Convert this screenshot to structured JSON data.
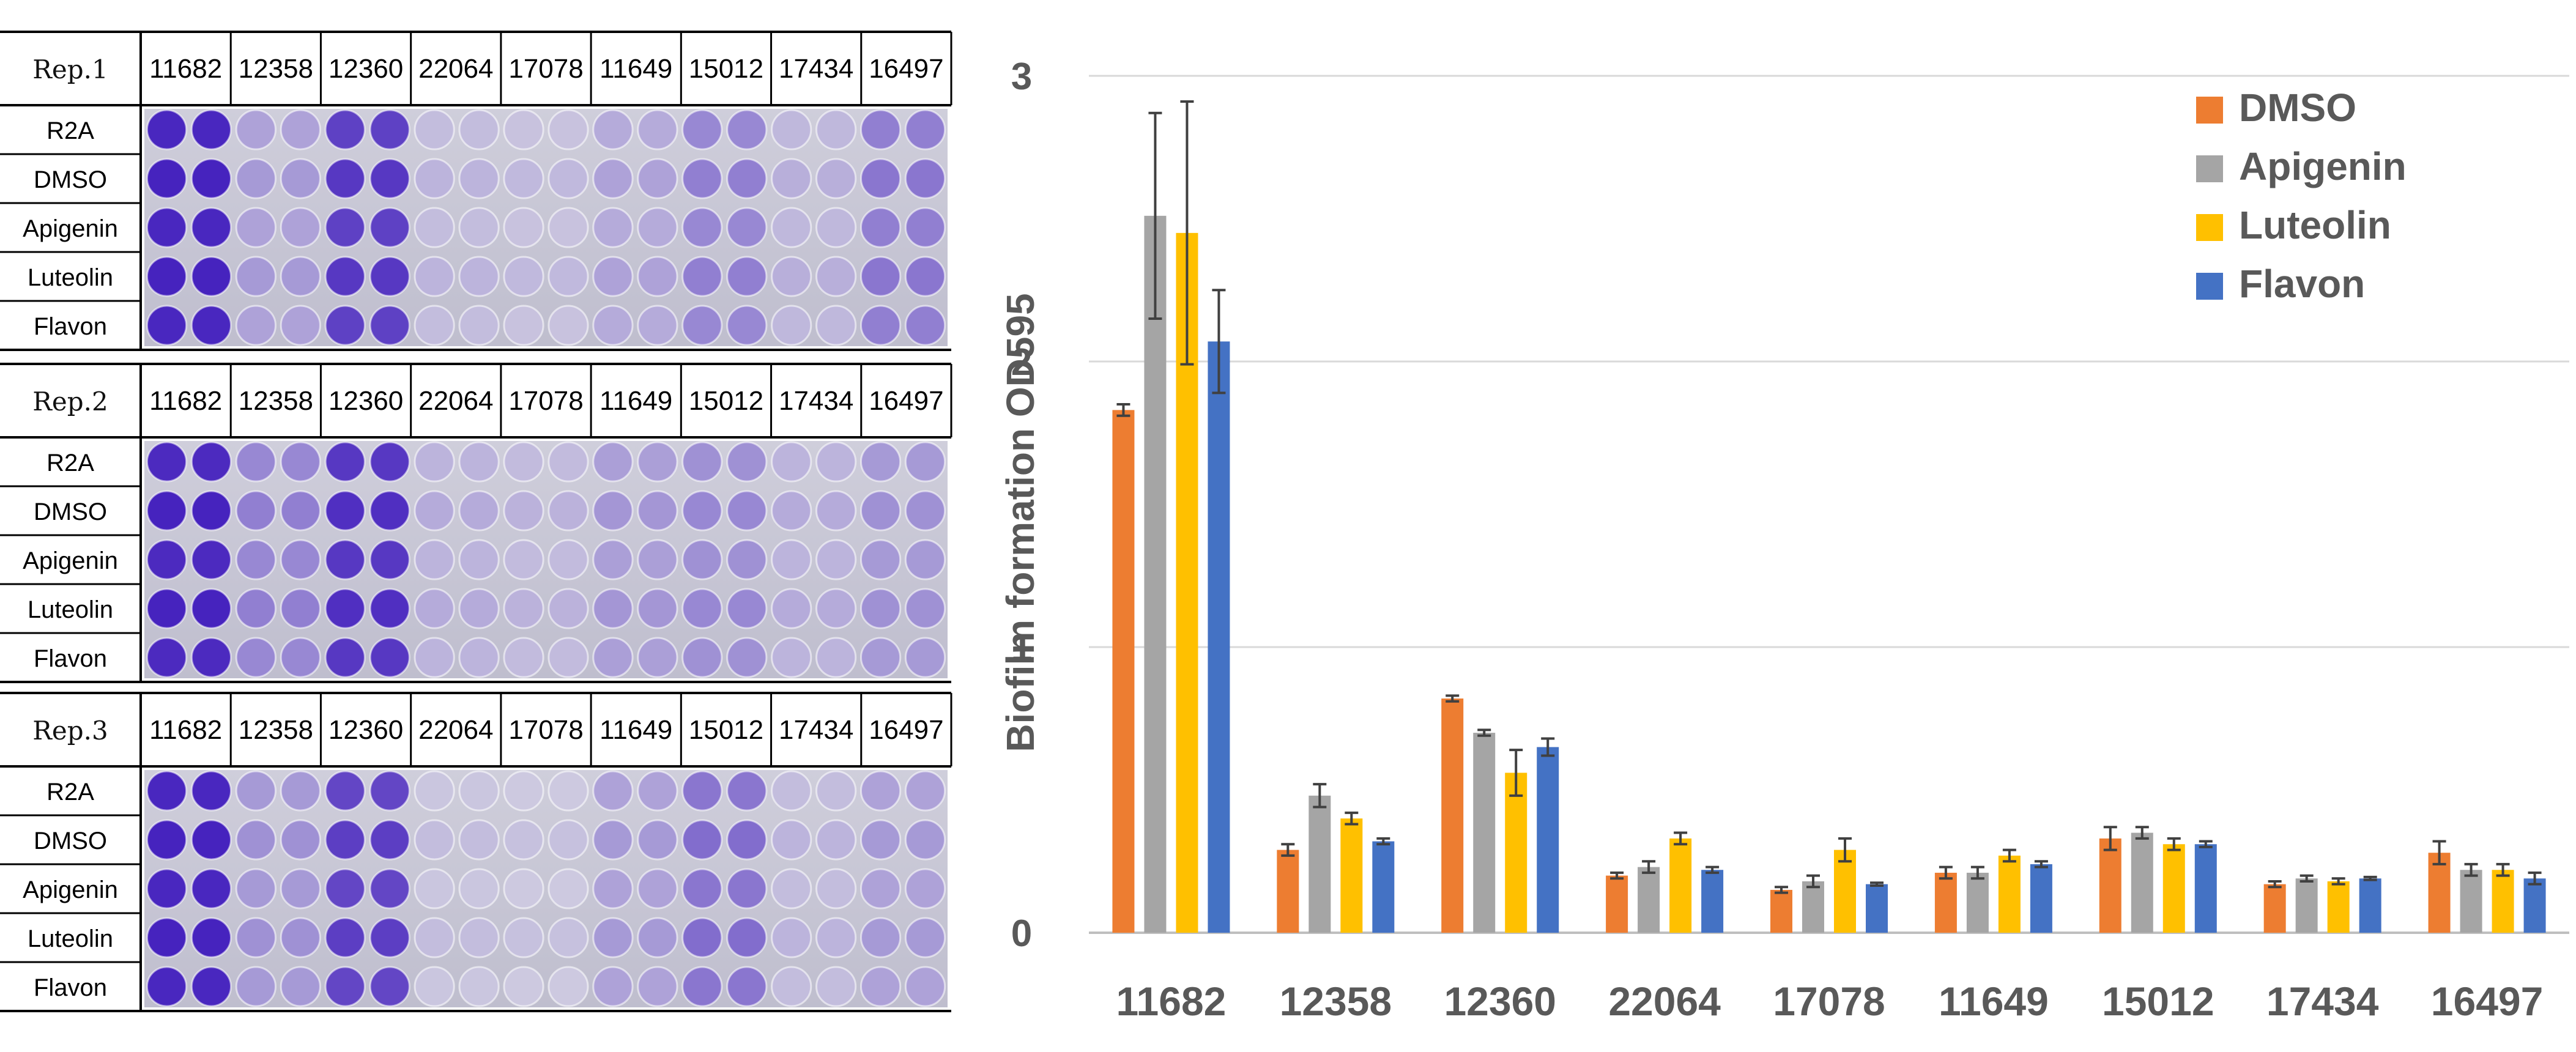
{
  "plates": {
    "reps": [
      "Rep.1",
      "Rep.2",
      "Rep.3"
    ],
    "strains": [
      "11682",
      "12358",
      "12360",
      "22064",
      "17078",
      "11649",
      "15012",
      "17434",
      "16497"
    ],
    "treatments": [
      "R2A",
      "DMSO",
      "Apigenin",
      "Luteolin",
      "Flavon"
    ],
    "well_intensity": [
      [
        1.0,
        0.3,
        0.85,
        0.15,
        0.12,
        0.25,
        0.45,
        0.18,
        0.5
      ],
      [
        0.98,
        0.45,
        0.9,
        0.2,
        0.16,
        0.32,
        0.4,
        0.2,
        0.35
      ],
      [
        1.0,
        0.35,
        0.82,
        0.1,
        0.08,
        0.3,
        0.55,
        0.15,
        0.3
      ]
    ]
  },
  "chart_data": {
    "type": "bar",
    "title": "",
    "xlabel": "",
    "ylabel": "Biofilm formation OD595",
    "ylim": [
      0,
      3
    ],
    "yticks": [
      0,
      1,
      2,
      3
    ],
    "grid": true,
    "legend_position": "top-right",
    "categories": [
      "11682",
      "12358",
      "12360",
      "22064",
      "17078",
      "11649",
      "15012",
      "17434",
      "16497"
    ],
    "series": [
      {
        "name": "DMSO",
        "color": "#ED7D31",
        "values": [
          1.83,
          0.29,
          0.82,
          0.2,
          0.15,
          0.21,
          0.33,
          0.17,
          0.28
        ],
        "errors": [
          0.02,
          0.02,
          0.01,
          0.01,
          0.01,
          0.02,
          0.04,
          0.01,
          0.04
        ]
      },
      {
        "name": "Apigenin",
        "color": "#A5A5A5",
        "values": [
          2.51,
          0.48,
          0.7,
          0.23,
          0.18,
          0.21,
          0.35,
          0.19,
          0.22
        ],
        "errors": [
          0.36,
          0.04,
          0.01,
          0.02,
          0.02,
          0.02,
          0.02,
          0.01,
          0.02
        ]
      },
      {
        "name": "Luteolin",
        "color": "#FFC000",
        "values": [
          2.45,
          0.4,
          0.56,
          0.33,
          0.29,
          0.27,
          0.31,
          0.18,
          0.22
        ],
        "errors": [
          0.46,
          0.02,
          0.08,
          0.02,
          0.04,
          0.02,
          0.02,
          0.01,
          0.02
        ]
      },
      {
        "name": "Flavon",
        "color": "#4472C4",
        "values": [
          2.07,
          0.32,
          0.65,
          0.22,
          0.17,
          0.24,
          0.31,
          0.19,
          0.19
        ],
        "errors": [
          0.18,
          0.01,
          0.03,
          0.01,
          0.005,
          0.01,
          0.01,
          0.005,
          0.02
        ]
      }
    ]
  }
}
